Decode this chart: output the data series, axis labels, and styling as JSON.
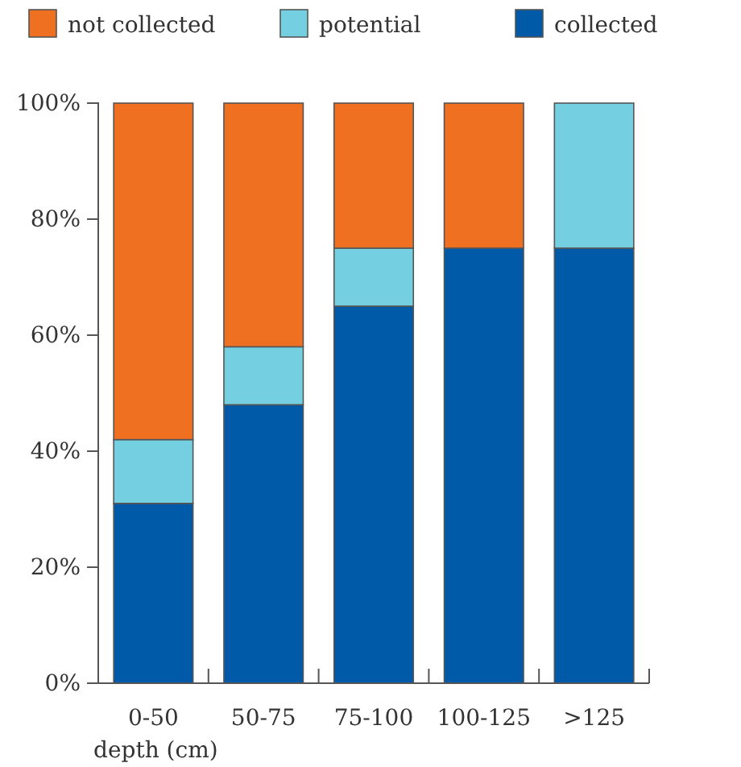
{
  "chart_data": {
    "type": "bar",
    "stacked": true,
    "xlabel": "depth (cm)",
    "categories": [
      "0-50",
      "50-75",
      "75-100",
      "100-125",
      ">125"
    ],
    "series": [
      {
        "name": "collected",
        "color": "#005aa8",
        "values": [
          31,
          48,
          65,
          75,
          75
        ]
      },
      {
        "name": "potential",
        "color": "#74cfe0",
        "values": [
          11,
          10,
          10,
          0,
          25
        ]
      },
      {
        "name": "not collected",
        "color": "#f07022",
        "values": [
          58,
          42,
          25,
          25,
          0
        ]
      }
    ],
    "ylim": [
      0,
      100
    ],
    "yticks": [
      {
        "value": 0,
        "label": "0%"
      },
      {
        "value": 20,
        "label": "20%"
      },
      {
        "value": 40,
        "label": "40%"
      },
      {
        "value": 60,
        "label": "60%"
      },
      {
        "value": 80,
        "label": "80%"
      },
      {
        "value": 100,
        "label": "100%"
      }
    ],
    "grid": false,
    "legend": "top"
  }
}
